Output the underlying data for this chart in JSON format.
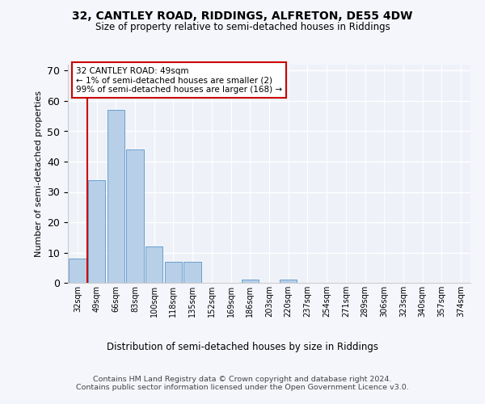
{
  "title1": "32, CANTLEY ROAD, RIDDINGS, ALFRETON, DE55 4DW",
  "title2": "Size of property relative to semi-detached houses in Riddings",
  "xlabel": "Distribution of semi-detached houses by size in Riddings",
  "ylabel": "Number of semi-detached properties",
  "categories": [
    "32sqm",
    "49sqm",
    "66sqm",
    "83sqm",
    "100sqm",
    "118sqm",
    "135sqm",
    "152sqm",
    "169sqm",
    "186sqm",
    "203sqm",
    "220sqm",
    "237sqm",
    "254sqm",
    "271sqm",
    "289sqm",
    "306sqm",
    "323sqm",
    "340sqm",
    "357sqm",
    "374sqm"
  ],
  "values": [
    8,
    34,
    57,
    44,
    12,
    7,
    7,
    0,
    0,
    1,
    0,
    1,
    0,
    0,
    0,
    0,
    0,
    0,
    0,
    0,
    0
  ],
  "bar_color": "#b8cfe8",
  "bar_edge_color": "#6a9fd0",
  "ylim": [
    0,
    72
  ],
  "yticks": [
    0,
    10,
    20,
    30,
    40,
    50,
    60,
    70
  ],
  "annotation_box_text": "32 CANTLEY ROAD: 49sqm\n← 1% of semi-detached houses are smaller (2)\n99% of semi-detached houses are larger (168) →",
  "annotation_box_color": "#cc0000",
  "vline_color": "#cc0000",
  "footer": "Contains HM Land Registry data © Crown copyright and database right 2024.\nContains public sector information licensed under the Open Government Licence v3.0.",
  "bg_color": "#f4f6fb",
  "plot_bg_color": "#eef2f8"
}
